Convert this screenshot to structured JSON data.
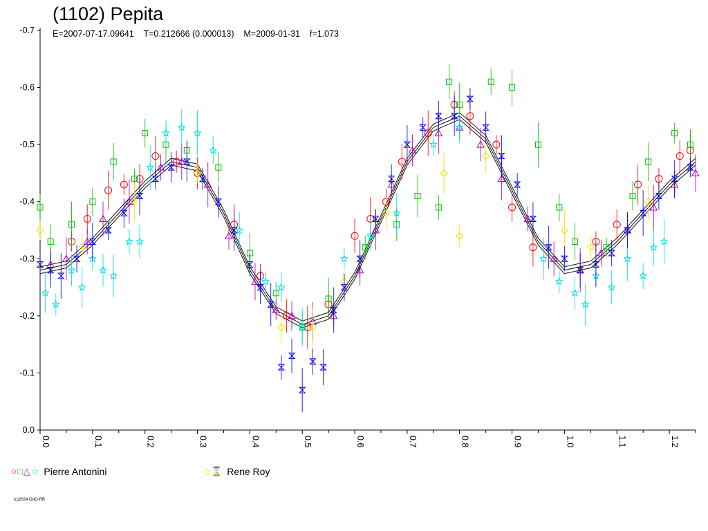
{
  "chart_data": {
    "type": "scatter",
    "title": "(1102) Pepita",
    "subtitle": "E=2007-07-17.09641    T=0.212666 (0.000013)    M=2009-01-31    f=1.073",
    "xlim": [
      0,
      1.25
    ],
    "ylim": [
      0.0,
      -0.7
    ],
    "x_ticks": [
      "0.0",
      "0.1",
      "0.2",
      "0.3",
      "0.4",
      "0.5",
      "0.6",
      "0.7",
      "0.8",
      "0.9",
      "1.0",
      "1.1",
      "1.2"
    ],
    "y_ticks": [
      "0.0",
      "-0.1",
      "-0.2",
      "-0.3",
      "-0.4",
      "-0.5",
      "-0.6",
      "-0.7"
    ],
    "grid": false,
    "legend_position": "bottom",
    "fit_curve": {
      "x": [
        0.0,
        0.05,
        0.1,
        0.15,
        0.2,
        0.25,
        0.3,
        0.35,
        0.4,
        0.45,
        0.5,
        0.55,
        0.6,
        0.65,
        0.7,
        0.75,
        0.8,
        0.85,
        0.9,
        0.95,
        1.0,
        1.05,
        1.1,
        1.15,
        1.2,
        1.25
      ],
      "y": [
        -0.28,
        -0.29,
        -0.33,
        -0.38,
        -0.43,
        -0.47,
        -0.46,
        -0.38,
        -0.28,
        -0.21,
        -0.185,
        -0.2,
        -0.27,
        -0.37,
        -0.47,
        -0.53,
        -0.55,
        -0.51,
        -0.42,
        -0.33,
        -0.28,
        -0.29,
        -0.33,
        -0.38,
        -0.43,
        -0.47
      ]
    },
    "series": [
      {
        "name": "Pierre Antonini",
        "observer": 1,
        "marker": "circle",
        "color": "#ff0000",
        "x": [
          0.06,
          0.09,
          0.13,
          0.16,
          0.19,
          0.22,
          0.26,
          0.3,
          0.37,
          0.42,
          0.47,
          0.51,
          0.55,
          0.6,
          0.63,
          0.66,
          0.69,
          0.74,
          0.79,
          0.82,
          0.87,
          0.9,
          0.94,
          1.06,
          1.1,
          1.14,
          1.18,
          1.22,
          1.24
        ],
        "y": [
          -0.33,
          -0.37,
          -0.42,
          -0.43,
          -0.44,
          -0.48,
          -0.47,
          -0.45,
          -0.36,
          -0.27,
          -0.2,
          -0.18,
          -0.22,
          -0.34,
          -0.37,
          -0.4,
          -0.47,
          -0.52,
          -0.57,
          -0.55,
          -0.5,
          -0.39,
          -0.32,
          -0.33,
          -0.36,
          -0.43,
          -0.44,
          -0.48,
          -0.49
        ]
      },
      {
        "name": "",
        "observer": 1,
        "marker": "square",
        "color": "#00c000",
        "x": [
          0.0,
          0.02,
          0.06,
          0.1,
          0.14,
          0.18,
          0.2,
          0.24,
          0.28,
          0.34,
          0.4,
          0.45,
          0.5,
          0.55,
          0.62,
          0.68,
          0.72,
          0.76,
          0.78,
          0.8,
          0.86,
          0.9,
          0.95,
          0.99,
          1.02,
          1.08,
          1.13,
          1.16,
          1.21,
          1.24
        ],
        "y": [
          -0.39,
          -0.33,
          -0.36,
          -0.4,
          -0.47,
          -0.44,
          -0.52,
          -0.5,
          -0.49,
          -0.46,
          -0.31,
          -0.24,
          -0.18,
          -0.23,
          -0.32,
          -0.36,
          -0.41,
          -0.39,
          -0.61,
          -0.57,
          -0.61,
          -0.6,
          -0.5,
          -0.39,
          -0.33,
          -0.32,
          -0.41,
          -0.47,
          -0.52,
          -0.5
        ]
      },
      {
        "name": "",
        "observer": 1,
        "marker": "triangle",
        "color": "#b000b0",
        "x": [
          0.02,
          0.05,
          0.09,
          0.12,
          0.17,
          0.23,
          0.27,
          0.32,
          0.36,
          0.41,
          0.45,
          0.48,
          0.52,
          0.56,
          0.61,
          0.64,
          0.67,
          0.71,
          0.76,
          0.8,
          0.84,
          0.88,
          0.93,
          0.98,
          1.03,
          1.07,
          1.12,
          1.17,
          1.21,
          1.25
        ],
        "y": [
          -0.29,
          -0.3,
          -0.33,
          -0.37,
          -0.4,
          -0.46,
          -0.47,
          -0.43,
          -0.34,
          -0.26,
          -0.21,
          -0.2,
          -0.19,
          -0.2,
          -0.28,
          -0.35,
          -0.43,
          -0.49,
          -0.52,
          -0.53,
          -0.5,
          -0.44,
          -0.37,
          -0.3,
          -0.28,
          -0.31,
          -0.35,
          -0.39,
          -0.43,
          -0.45
        ]
      },
      {
        "name": "",
        "observer": 1,
        "marker": "star",
        "color": "#00e0e0",
        "x": [
          0.01,
          0.03,
          0.06,
          0.08,
          0.1,
          0.12,
          0.14,
          0.17,
          0.19,
          0.21,
          0.24,
          0.27,
          0.3,
          0.33,
          0.38,
          0.43,
          0.46,
          0.5,
          0.58,
          0.63,
          0.68,
          0.75,
          0.8,
          0.96,
          0.99,
          1.02,
          1.04,
          1.06,
          1.09,
          1.12,
          1.15,
          1.17,
          1.19
        ],
        "y": [
          -0.24,
          -0.22,
          -0.28,
          -0.25,
          -0.3,
          -0.28,
          -0.27,
          -0.33,
          -0.33,
          -0.46,
          -0.52,
          -0.53,
          -0.52,
          -0.49,
          -0.35,
          -0.26,
          -0.25,
          -0.18,
          -0.3,
          -0.34,
          -0.38,
          -0.5,
          -0.53,
          -0.3,
          -0.26,
          -0.24,
          -0.22,
          -0.27,
          -0.25,
          -0.3,
          -0.27,
          -0.32,
          -0.33
        ]
      },
      {
        "name": "Rene Roy",
        "observer": 2,
        "marker": "diamond",
        "color": "#e8e800",
        "x": [
          0.0,
          0.08,
          0.18,
          0.3,
          0.46,
          0.52,
          0.58,
          0.66,
          0.77,
          0.8,
          0.85,
          1.0,
          1.05,
          1.16
        ],
        "y": [
          -0.35,
          -0.32,
          -0.4,
          -0.45,
          -0.18,
          -0.18,
          -0.26,
          -0.38,
          -0.45,
          -0.34,
          -0.48,
          -0.35,
          -0.32,
          -0.4
        ]
      },
      {
        "name": "",
        "observer": 2,
        "marker": "hourglass",
        "color": "#0000e0",
        "x": [
          0.0,
          0.02,
          0.04,
          0.07,
          0.1,
          0.13,
          0.16,
          0.19,
          0.22,
          0.25,
          0.28,
          0.31,
          0.34,
          0.37,
          0.4,
          0.42,
          0.44,
          0.46,
          0.48,
          0.5,
          0.52,
          0.54,
          0.56,
          0.58,
          0.61,
          0.64,
          0.67,
          0.7,
          0.73,
          0.76,
          0.79,
          0.82,
          0.85,
          0.88,
          0.91,
          0.94,
          0.97,
          1.0,
          1.03,
          1.06,
          1.09,
          1.12,
          1.15,
          1.18,
          1.21,
          1.24
        ],
        "y": [
          -0.29,
          -0.28,
          -0.27,
          -0.3,
          -0.33,
          -0.35,
          -0.38,
          -0.41,
          -0.44,
          -0.46,
          -0.47,
          -0.44,
          -0.4,
          -0.35,
          -0.29,
          -0.25,
          -0.22,
          -0.11,
          -0.13,
          -0.07,
          -0.12,
          -0.11,
          -0.21,
          -0.25,
          -0.3,
          -0.37,
          -0.44,
          -0.5,
          -0.53,
          -0.55,
          -0.55,
          -0.58,
          -0.53,
          -0.48,
          -0.43,
          -0.37,
          -0.32,
          -0.3,
          -0.28,
          -0.29,
          -0.31,
          -0.35,
          -0.38,
          -0.41,
          -0.44,
          -0.46
        ]
      }
    ],
    "legend": [
      {
        "label": "Pierre Antonini",
        "markers": "○□△☆"
      },
      {
        "label": "Rene Roy",
        "markers": "◇⌛"
      }
    ],
    "copyright": "(c)2024 OdO-RB"
  }
}
